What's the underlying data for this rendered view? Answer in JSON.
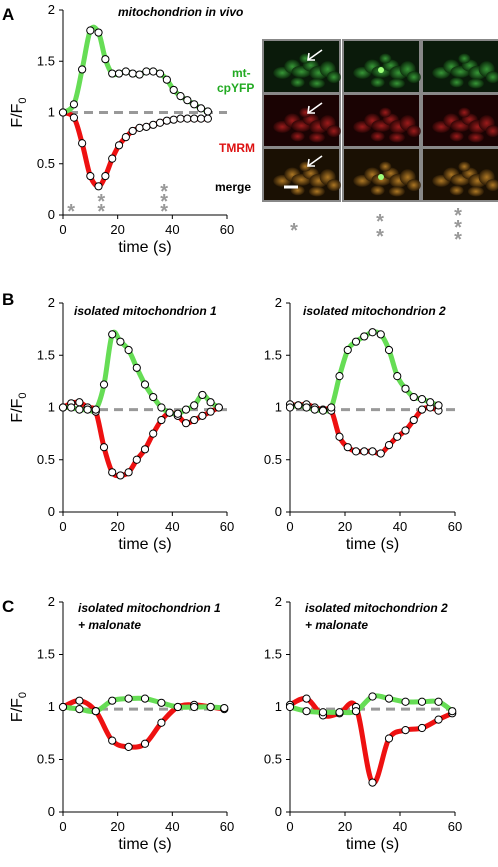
{
  "colors": {
    "yfp": "#66dd55",
    "tmrm": "#ee1111",
    "baseline": "#999999",
    "star": "#999999",
    "label_green": "#22aa22",
    "label_red": "#dd1111"
  },
  "panel_letters": [
    "A",
    "B",
    "C"
  ],
  "image_labels": {
    "yfp_line1": "mt-",
    "yfp_line2": "cpYFP",
    "tmrm": "TMRM",
    "merge": "merge"
  },
  "chart_data": [
    {
      "id": "A",
      "type": "line",
      "title": [
        "mitochondrion in vivo"
      ],
      "xlabel": "time (s)",
      "ylabel": "F/F0",
      "xlim": [
        0,
        60
      ],
      "ylim": [
        0,
        2
      ],
      "xticks": [
        "0",
        "20",
        "40",
        "60"
      ],
      "yticks": [
        "0",
        "0.5",
        "1",
        "1.5",
        "2"
      ],
      "baseline": 1,
      "series": [
        {
          "color_key": "yfp",
          "x": [
            0,
            4,
            7,
            10,
            13,
            15.5,
            18,
            20.5,
            23,
            25.5,
            28,
            30.5,
            33,
            35.5,
            38,
            40.5,
            43,
            45.5,
            48,
            50.5,
            53
          ],
          "y": [
            1.0,
            1.08,
            1.42,
            1.8,
            1.78,
            1.52,
            1.38,
            1.38,
            1.4,
            1.38,
            1.37,
            1.4,
            1.4,
            1.38,
            1.32,
            1.22,
            1.16,
            1.12,
            1.08,
            1.04,
            1.01
          ]
        },
        {
          "color_key": "tmrm",
          "x": [
            0,
            4,
            7,
            10,
            13,
            15.5,
            18,
            20.5,
            23,
            25.5,
            28,
            30.5,
            33,
            35.5,
            38,
            40.5,
            43,
            45.5,
            48,
            50.5,
            53
          ],
          "y": [
            1.0,
            0.95,
            0.7,
            0.38,
            0.28,
            0.38,
            0.55,
            0.68,
            0.76,
            0.82,
            0.85,
            0.86,
            0.88,
            0.9,
            0.92,
            0.93,
            0.94,
            0.94,
            0.94,
            0.94,
            0.94
          ]
        }
      ],
      "stars": [
        {
          "x": 3,
          "n": 1
        },
        {
          "x": 14,
          "n": 2
        },
        {
          "x": 37,
          "n": 3
        }
      ]
    },
    {
      "id": "B1",
      "type": "line",
      "title": [
        "isolated mitochondrion  1"
      ],
      "xlabel": "time (s)",
      "ylabel": "F/F0",
      "xlim": [
        0,
        60
      ],
      "ylim": [
        0,
        2
      ],
      "xticks": [
        "0",
        "20",
        "40",
        "60"
      ],
      "yticks": [
        "0",
        "0.5",
        "1",
        "1.5",
        "2"
      ],
      "baseline": 0.98,
      "series": [
        {
          "color_key": "yfp",
          "x": [
            0,
            3,
            6,
            9,
            12,
            15,
            18,
            21,
            24,
            27,
            30,
            33,
            36,
            39,
            42,
            45,
            48,
            51,
            54,
            57
          ],
          "y": [
            1.0,
            1.0,
            0.98,
            0.98,
            0.98,
            1.22,
            1.7,
            1.63,
            1.55,
            1.38,
            1.22,
            1.1,
            1.0,
            0.95,
            0.94,
            0.98,
            1.02,
            1.12,
            1.05,
            1.0
          ]
        },
        {
          "color_key": "tmrm",
          "x": [
            0,
            3,
            6,
            9,
            12,
            15,
            18,
            21,
            24,
            27,
            30,
            33,
            36,
            39,
            42,
            45,
            48,
            51,
            54,
            57
          ],
          "y": [
            1.0,
            1.04,
            1.05,
            1.0,
            0.96,
            0.62,
            0.38,
            0.35,
            0.38,
            0.5,
            0.6,
            0.75,
            0.88,
            0.95,
            0.92,
            0.85,
            0.88,
            0.92,
            0.96,
            1.0
          ]
        }
      ]
    },
    {
      "id": "B2",
      "type": "line",
      "title": [
        "isolated mitochondrion  2"
      ],
      "xlabel": "time (s)",
      "ylabel": "",
      "xlim": [
        0,
        60
      ],
      "ylim": [
        0,
        2
      ],
      "xticks": [
        "0",
        "20",
        "40",
        "60"
      ],
      "yticks": [
        "0",
        "0.5",
        "1",
        "1.5",
        "2"
      ],
      "baseline": 0.98,
      "series": [
        {
          "color_key": "yfp",
          "x": [
            0,
            3,
            6,
            9,
            12,
            15,
            18,
            21,
            24,
            27,
            30,
            33,
            36,
            39,
            42,
            45,
            48,
            51,
            54
          ],
          "y": [
            1.0,
            1.02,
            1.0,
            0.98,
            0.97,
            1.0,
            1.3,
            1.55,
            1.63,
            1.68,
            1.72,
            1.7,
            1.55,
            1.3,
            1.18,
            1.1,
            1.08,
            1.05,
            1.02
          ]
        },
        {
          "color_key": "tmrm",
          "x": [
            0,
            3,
            6,
            9,
            12,
            15,
            18,
            21,
            24,
            27,
            30,
            33,
            36,
            39,
            42,
            45,
            48,
            51,
            54
          ],
          "y": [
            1.03,
            1.02,
            1.03,
            1.0,
            0.98,
            0.97,
            0.72,
            0.62,
            0.58,
            0.58,
            0.58,
            0.56,
            0.64,
            0.72,
            0.78,
            0.88,
            0.98,
            1.0,
            0.97
          ]
        }
      ]
    },
    {
      "id": "C1",
      "type": "line",
      "title": [
        "isolated mitochondrion  1",
        "+ malonate"
      ],
      "xlabel": "time (s)",
      "ylabel": "F/F0",
      "xlim": [
        0,
        60
      ],
      "ylim": [
        0,
        2
      ],
      "xticks": [
        "0",
        "20",
        "40",
        "60"
      ],
      "yticks": [
        "0",
        "0.5",
        "1",
        "1.5",
        "2"
      ],
      "baseline": 0.98,
      "series": [
        {
          "color_key": "yfp",
          "x": [
            0,
            6,
            12,
            18,
            24,
            30,
            36,
            42,
            48,
            54,
            59
          ],
          "y": [
            1.0,
            0.98,
            0.96,
            1.06,
            1.08,
            1.08,
            1.04,
            1.0,
            1.0,
            1.0,
            0.99
          ]
        },
        {
          "color_key": "tmrm",
          "x": [
            0,
            6,
            12,
            18,
            24,
            30,
            36,
            42,
            48,
            54,
            59
          ],
          "y": [
            1.0,
            1.06,
            0.96,
            0.68,
            0.62,
            0.65,
            0.85,
            1.0,
            1.02,
            1.0,
            0.98
          ]
        }
      ]
    },
    {
      "id": "C2",
      "type": "line",
      "title": [
        "isolated mitochondrion  2",
        "+ malonate"
      ],
      "xlabel": "time (s)",
      "ylabel": "",
      "xlim": [
        0,
        60
      ],
      "ylim": [
        0,
        2
      ],
      "xticks": [
        "0",
        "20",
        "40",
        "60"
      ],
      "yticks": [
        "0",
        "0.5",
        "1",
        "1.5",
        "2"
      ],
      "baseline": 0.98,
      "series": [
        {
          "color_key": "yfp",
          "x": [
            0,
            6,
            12,
            18,
            24,
            30,
            36,
            42,
            48,
            54,
            59
          ],
          "y": [
            1.0,
            0.96,
            0.95,
            0.95,
            0.96,
            1.1,
            1.08,
            1.05,
            1.05,
            1.05,
            0.96
          ]
        },
        {
          "color_key": "tmrm",
          "x": [
            0,
            6,
            12,
            18,
            24,
            30,
            36,
            42,
            48,
            54,
            59
          ],
          "y": [
            1.02,
            1.08,
            0.92,
            0.94,
            1.0,
            0.28,
            0.7,
            0.78,
            0.8,
            0.88,
            0.94
          ]
        }
      ]
    }
  ]
}
